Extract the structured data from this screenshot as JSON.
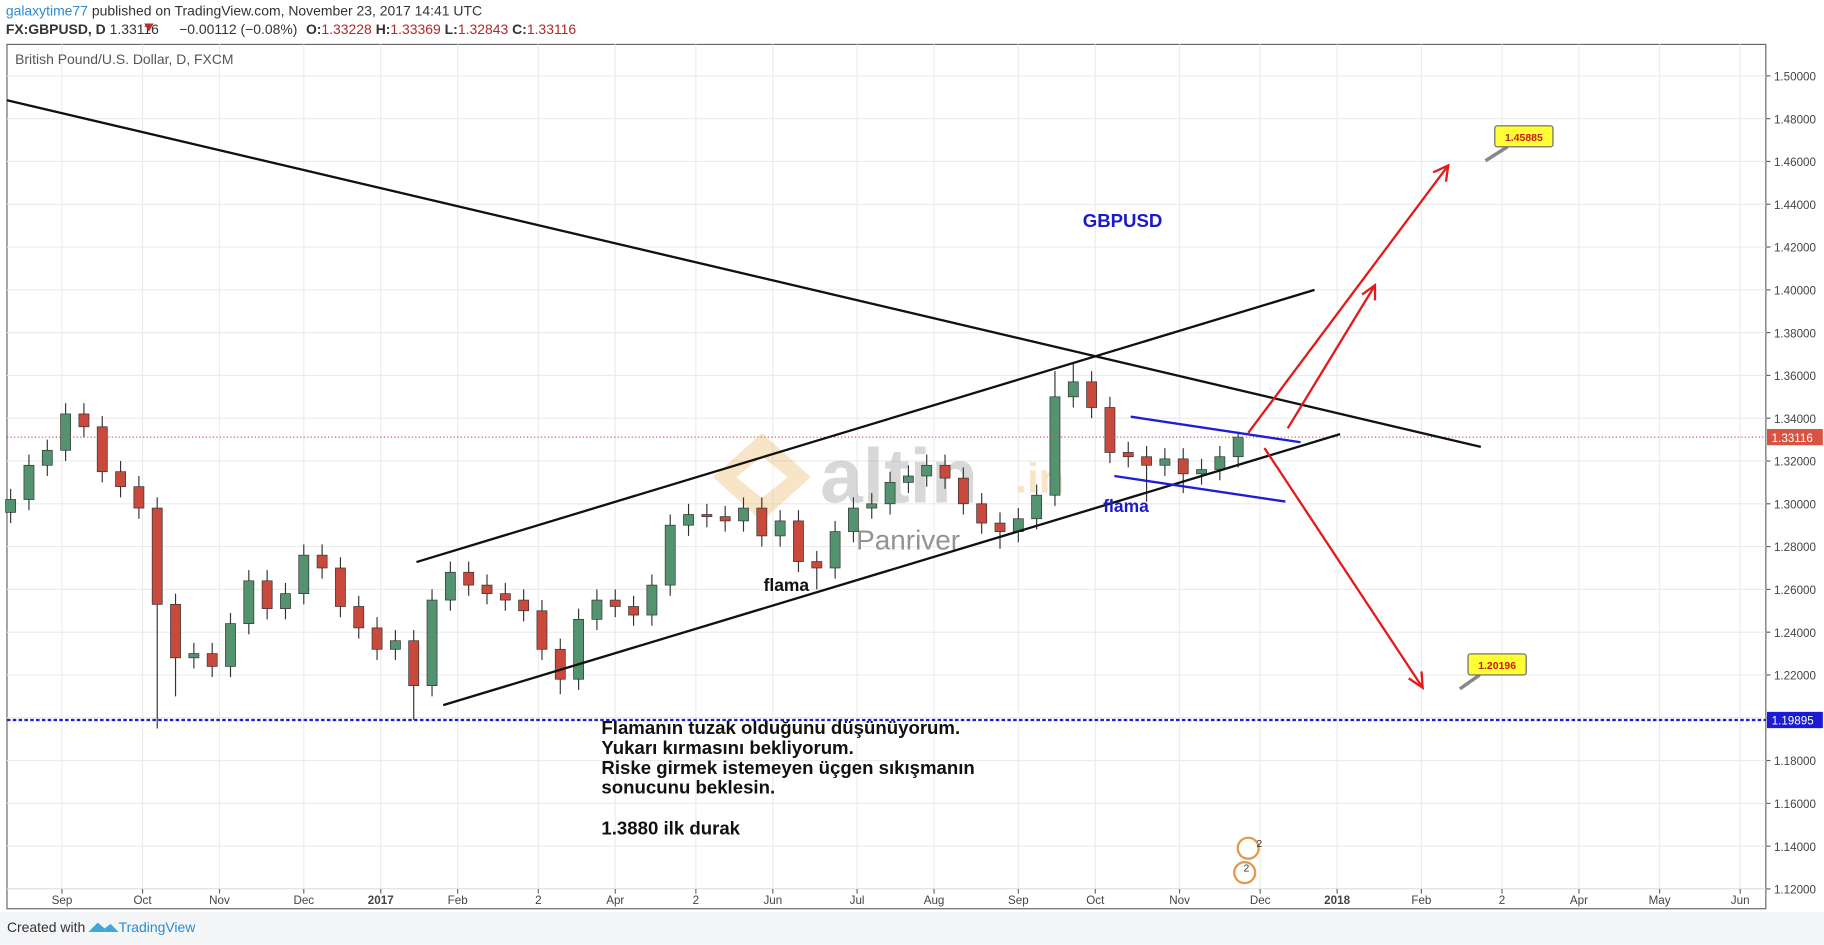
{
  "header": {
    "author": "galaxytime77",
    "published": "published on TradingView.com, November 23, 2017 14:41 UTC",
    "symbol": "FX:GBPUSD, D",
    "last": "1.33116",
    "change": "−0.00112 (−0.08%)",
    "ohlc": [
      {
        "label": "O:",
        "value": "1.33228"
      },
      {
        "label": "H:",
        "value": "1.33369"
      },
      {
        "label": "L:",
        "value": "1.32843"
      },
      {
        "label": "C:",
        "value": "1.33116"
      }
    ]
  },
  "chart_data": {
    "type": "candlestick",
    "title": "British Pound/U.S. Dollar, D, FXCM",
    "up_color": "#53936f",
    "down_color": "#c94a3c",
    "x": [
      -14,
      -9,
      -4,
      1,
      6,
      11,
      16,
      21,
      26,
      31,
      36,
      41,
      46,
      51,
      56,
      61,
      66,
      71,
      76,
      81,
      86,
      91,
      96,
      101,
      106,
      111,
      116,
      121,
      126,
      131,
      136,
      141,
      146,
      151,
      156,
      161,
      166,
      171,
      176,
      181,
      186,
      191,
      196,
      201,
      206,
      211,
      216,
      221,
      226,
      231,
      236,
      241,
      246,
      251,
      256,
      261,
      266,
      271,
      276,
      281,
      286,
      291,
      296,
      301,
      306,
      311,
      316,
      321
    ],
    "open": [
      1.296,
      1.302,
      1.318,
      1.325,
      1.342,
      1.336,
      1.315,
      1.308,
      1.298,
      1.253,
      1.228,
      1.23,
      1.224,
      1.244,
      1.264,
      1.251,
      1.258,
      1.276,
      1.27,
      1.252,
      1.242,
      1.232,
      1.236,
      1.215,
      1.255,
      1.268,
      1.262,
      1.258,
      1.255,
      1.25,
      1.232,
      1.218,
      1.246,
      1.255,
      1.252,
      1.248,
      1.262,
      1.29,
      1.295,
      1.294,
      1.292,
      1.298,
      1.285,
      1.292,
      1.273,
      1.27,
      1.287,
      1.298,
      1.3,
      1.31,
      1.313,
      1.318,
      1.312,
      1.3,
      1.291,
      1.287,
      1.293,
      1.304,
      1.35,
      1.357,
      1.345,
      1.324,
      1.322,
      1.318,
      1.321,
      1.314,
      1.316,
      1.322
    ],
    "high": [
      1.307,
      1.323,
      1.33,
      1.347,
      1.347,
      1.341,
      1.32,
      1.313,
      1.303,
      1.258,
      1.235,
      1.235,
      1.249,
      1.269,
      1.269,
      1.263,
      1.281,
      1.281,
      1.275,
      1.257,
      1.247,
      1.241,
      1.241,
      1.26,
      1.273,
      1.273,
      1.267,
      1.263,
      1.26,
      1.255,
      1.237,
      1.251,
      1.26,
      1.26,
      1.257,
      1.267,
      1.295,
      1.3,
      1.3,
      1.299,
      1.303,
      1.303,
      1.297,
      1.297,
      1.278,
      1.292,
      1.303,
      1.305,
      1.315,
      1.318,
      1.323,
      1.323,
      1.317,
      1.305,
      1.296,
      1.298,
      1.309,
      1.362,
      1.366,
      1.362,
      1.35,
      1.329,
      1.327,
      1.326,
      1.326,
      1.321,
      1.327,
      1.3337
    ],
    "low": [
      1.291,
      1.297,
      1.313,
      1.32,
      1.331,
      1.31,
      1.303,
      1.293,
      1.195,
      1.21,
      1.223,
      1.219,
      1.219,
      1.239,
      1.246,
      1.246,
      1.253,
      1.265,
      1.247,
      1.237,
      1.227,
      1.227,
      1.199,
      1.21,
      1.25,
      1.257,
      1.253,
      1.25,
      1.245,
      1.227,
      1.211,
      1.213,
      1.241,
      1.247,
      1.243,
      1.243,
      1.257,
      1.285,
      1.289,
      1.287,
      1.287,
      1.28,
      1.28,
      1.268,
      1.26,
      1.265,
      1.282,
      1.293,
      1.295,
      1.305,
      1.308,
      1.307,
      1.295,
      1.286,
      1.279,
      1.282,
      1.288,
      1.299,
      1.345,
      1.34,
      1.319,
      1.317,
      1.301,
      1.313,
      1.305,
      1.309,
      1.311,
      1.317
    ],
    "close": [
      1.302,
      1.318,
      1.325,
      1.342,
      1.336,
      1.315,
      1.308,
      1.298,
      1.253,
      1.228,
      1.23,
      1.224,
      1.244,
      1.264,
      1.251,
      1.258,
      1.276,
      1.27,
      1.252,
      1.242,
      1.232,
      1.236,
      1.215,
      1.255,
      1.268,
      1.262,
      1.258,
      1.255,
      1.25,
      1.232,
      1.218,
      1.246,
      1.255,
      1.252,
      1.248,
      1.262,
      1.29,
      1.295,
      1.294,
      1.292,
      1.298,
      1.285,
      1.292,
      1.273,
      1.27,
      1.287,
      1.298,
      1.3,
      1.31,
      1.313,
      1.318,
      1.312,
      1.3,
      1.291,
      1.287,
      1.293,
      1.304,
      1.35,
      1.357,
      1.345,
      1.324,
      1.322,
      1.318,
      1.321,
      1.314,
      1.316,
      1.322,
      1.33116
    ],
    "xlim": [
      -15,
      465
    ],
    "xticks": [
      {
        "value": 0,
        "label": "Sep"
      },
      {
        "value": 22,
        "label": "Oct"
      },
      {
        "value": 43,
        "label": "Nov"
      },
      {
        "value": 66,
        "label": "Dec"
      },
      {
        "value": 87,
        "label": "2017"
      },
      {
        "value": 108,
        "label": "Feb"
      },
      {
        "value": 130,
        "label": "2"
      },
      {
        "value": 151,
        "label": "Apr"
      },
      {
        "value": 173,
        "label": "2"
      },
      {
        "value": 194,
        "label": "Jun"
      },
      {
        "value": 217,
        "label": "Jul"
      },
      {
        "value": 238,
        "label": "Aug"
      },
      {
        "value": 261,
        "label": "Sep"
      },
      {
        "value": 282,
        "label": "Oct"
      },
      {
        "value": 305,
        "label": "Nov"
      },
      {
        "value": 327,
        "label": "Dec"
      },
      {
        "value": 348,
        "label": "2018"
      },
      {
        "value": 371,
        "label": "Feb"
      },
      {
        "value": 393,
        "label": "2"
      },
      {
        "value": 414,
        "label": "Apr"
      },
      {
        "value": 436,
        "label": "May"
      },
      {
        "value": 458,
        "label": "Jun"
      }
    ],
    "ylim": [
      1.1189,
      1.5147
    ],
    "yticks": [
      {
        "value": 1.12,
        "label": "1.12000"
      },
      {
        "value": 1.14,
        "label": "1.14000"
      },
      {
        "value": 1.16,
        "label": "1.16000"
      },
      {
        "value": 1.18,
        "label": "1.18000"
      },
      {
        "value": 1.2,
        "label": "1.20000"
      },
      {
        "value": 1.22,
        "label": "1.22000"
      },
      {
        "value": 1.24,
        "label": "1.24000"
      },
      {
        "value": 1.26,
        "label": "1.26000"
      },
      {
        "value": 1.28,
        "label": "1.28000"
      },
      {
        "value": 1.3,
        "label": "1.30000"
      },
      {
        "value": 1.32,
        "label": "1.32000"
      },
      {
        "value": 1.34,
        "label": "1.34000"
      },
      {
        "value": 1.36,
        "label": "1.36000"
      },
      {
        "value": 1.38,
        "label": "1.38000"
      },
      {
        "value": 1.4,
        "label": "1.40000"
      },
      {
        "value": 1.42,
        "label": "1.42000"
      },
      {
        "value": 1.44,
        "label": "1.44000"
      },
      {
        "value": 1.46,
        "label": "1.46000"
      },
      {
        "value": 1.48,
        "label": "1.48000"
      },
      {
        "value": 1.5,
        "label": "1.50000"
      }
    ],
    "grid": true,
    "price_line": {
      "value": 1.33116,
      "color": "#d75442"
    },
    "support_line": {
      "value": 1.19895,
      "color": "#1b1bd6"
    },
    "annotations": {
      "symbol": "GBPUSD",
      "flag_1": "flama",
      "flag_2": "flama",
      "notes": [
        "Flamanın tuzak olduğunu düşünüyorum.",
        "Yukarı kırmasını bekliyorum.",
        "Riske girmek istemeyen üçgen sıkışmanın",
        "sonucunu beklesin."
      ],
      "first_stop": "1.3880 ilk durak",
      "target_up": "1.45885",
      "target_down": "1.20196",
      "events": [
        "2",
        "2"
      ]
    },
    "watermark": {
      "brand": "altin",
      "domain": ".in",
      "sub": "Panriver"
    }
  },
  "footer": {
    "created": "Created with",
    "brand": "TradingView"
  }
}
